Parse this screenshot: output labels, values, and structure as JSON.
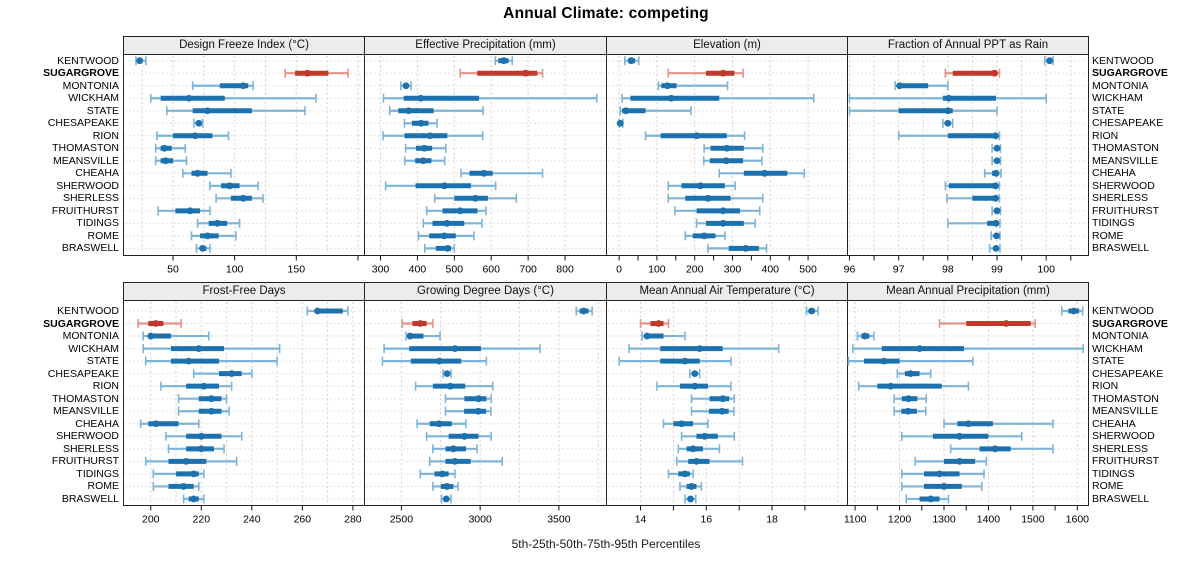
{
  "title": "Annual Climate: competing",
  "caption": "5th-25th-50th-75th-95th Percentiles",
  "percentiles": [
    "5th",
    "25th",
    "50th",
    "75th",
    "95th"
  ],
  "highlight_site": "SUGARGROVE",
  "sites": [
    "KENTWOOD",
    "SUGARGROVE",
    "MONTONIA",
    "WICKHAM",
    "STATE",
    "CHESAPEAKE",
    "RION",
    "THOMASTON",
    "MEANSVILLE",
    "CHEAHA",
    "SHERWOOD",
    "SHERLESS",
    "FRUITHURST",
    "TIDINGS",
    "ROME",
    "BRASWELL"
  ],
  "colors": {
    "blue_dark": "#1c71ae",
    "blue_light": "#7eb4d9",
    "red_dark": "#c0392b",
    "red_light": "#e2948a",
    "grid": "#cfcfcf",
    "row_guide": "#d8d8d8",
    "strip_bg": "#ececec",
    "border": "#222222"
  },
  "chart_data": [
    {
      "type": "dotplot-interval",
      "panel": "Design Freeze Index (°C)",
      "row": "top",
      "xlim": [
        10.3,
        204.9
      ],
      "grid": [
        25,
        50,
        75,
        100,
        125,
        150,
        175,
        200
      ],
      "ticks": [
        50,
        100,
        150,
        200
      ],
      "tick_labels": [
        "50",
        "100",
        "150",
        ""
      ],
      "values": [
        [
          20,
          22,
          23,
          25,
          28
        ],
        [
          141,
          149,
          159,
          176,
          192
        ],
        [
          66,
          88,
          107,
          111,
          115
        ],
        [
          32,
          40,
          63,
          92,
          166
        ],
        [
          45,
          66,
          78,
          114,
          157
        ],
        [
          67,
          69,
          71,
          72,
          74
        ],
        [
          37,
          50,
          68,
          82,
          95
        ],
        [
          36,
          40,
          43,
          49,
          60
        ],
        [
          36,
          40,
          44,
          50,
          61
        ],
        [
          58,
          65,
          70,
          78,
          97
        ],
        [
          80,
          89,
          96,
          104,
          119
        ],
        [
          85,
          97,
          107,
          114,
          123
        ],
        [
          38,
          52,
          64,
          72,
          80
        ],
        [
          70,
          79,
          86,
          94,
          104
        ],
        [
          65,
          72,
          78,
          87,
          101
        ],
        [
          69,
          72,
          74,
          77,
          80
        ]
      ]
    },
    {
      "type": "dotplot-interval",
      "panel": "Effective Precipitation (mm)",
      "row": "top",
      "xlim": [
        258,
        911
      ],
      "grid": [
        300,
        400,
        500,
        600,
        700,
        800
      ],
      "ticks": [
        300,
        400,
        500,
        600,
        700,
        800
      ],
      "tick_labels": [
        "300",
        "400",
        "500",
        "600",
        "700",
        "800"
      ],
      "values": [
        [
          611,
          619,
          634,
          647,
          657
        ],
        [
          516,
          562,
          693,
          725,
          739
        ],
        [
          355,
          362,
          369,
          376,
          383
        ],
        [
          308,
          363,
          409,
          567,
          886
        ],
        [
          325,
          348,
          376,
          444,
          578
        ],
        [
          365,
          385,
          410,
          430,
          453
        ],
        [
          307,
          365,
          434,
          481,
          577
        ],
        [
          368,
          396,
          419,
          440,
          477
        ],
        [
          366,
          394,
          416,
          438,
          474
        ],
        [
          518,
          541,
          580,
          604,
          739
        ],
        [
          314,
          395,
          473,
          545,
          612
        ],
        [
          447,
          500,
          557,
          591,
          668
        ],
        [
          425,
          468,
          516,
          563,
          586
        ],
        [
          416,
          441,
          480,
          527,
          575
        ],
        [
          403,
          432,
          473,
          504,
          553
        ],
        [
          420,
          450,
          482,
          491,
          500
        ]
      ]
    },
    {
      "type": "dotplot-interval",
      "panel": "Elevation (m)",
      "row": "top",
      "xlim": [
        -32,
        603
      ],
      "grid": [
        0,
        100,
        200,
        300,
        400,
        500
      ],
      "ticks": [
        0,
        50,
        100,
        150,
        200,
        250,
        300,
        350,
        400,
        450,
        500
      ],
      "tick_labels": [
        "0",
        "",
        "100",
        "",
        "200",
        "",
        "300",
        "",
        "400",
        "",
        "500"
      ],
      "values": [
        [
          15,
          24,
          32,
          42,
          52
        ],
        [
          130,
          230,
          275,
          305,
          328
        ],
        [
          104,
          112,
          128,
          152,
          287
        ],
        [
          8,
          30,
          138,
          265,
          515
        ],
        [
          3,
          8,
          18,
          70,
          190
        ],
        [
          0,
          1,
          3,
          6,
          10
        ],
        [
          70,
          110,
          205,
          285,
          332
        ],
        [
          225,
          242,
          285,
          330,
          380
        ],
        [
          224,
          240,
          283,
          328,
          378
        ],
        [
          265,
          330,
          385,
          445,
          490
        ],
        [
          130,
          165,
          215,
          280,
          307
        ],
        [
          130,
          175,
          235,
          295,
          380
        ],
        [
          148,
          205,
          275,
          320,
          372
        ],
        [
          205,
          230,
          275,
          330,
          360
        ],
        [
          175,
          195,
          225,
          255,
          280
        ],
        [
          235,
          290,
          335,
          370,
          390
        ]
      ]
    },
    {
      "type": "dotplot-interval",
      "panel": "Fraction of Annual PPT as Rain",
      "row": "top",
      "xlim": [
        95.97,
        100.85
      ],
      "grid": [
        96,
        96.5,
        97,
        97.5,
        98,
        98.5,
        99,
        99.5,
        100,
        100.5
      ],
      "ticks": [
        96,
        96.5,
        97,
        97.5,
        98,
        98.5,
        99,
        99.5,
        100,
        100.5
      ],
      "tick_labels": [
        "96",
        "",
        "97",
        "",
        "98",
        "",
        "99",
        "",
        "100",
        ""
      ],
      "values": [
        [
          99.97,
          100.02,
          100.07,
          100.1,
          100.14
        ],
        [
          97.95,
          98.1,
          98.95,
          99.0,
          99.05
        ],
        [
          96.93,
          96.97,
          97.02,
          97.6,
          98.0
        ],
        [
          96.0,
          97.9,
          98.02,
          98.98,
          100.0
        ],
        [
          96.0,
          97.0,
          98.0,
          98.1,
          99.0
        ],
        [
          97.9,
          97.96,
          98.0,
          98.04,
          98.1
        ],
        [
          97.0,
          98.0,
          98.97,
          99.0,
          99.05
        ],
        [
          98.9,
          98.96,
          99.0,
          99.03,
          99.07
        ],
        [
          98.9,
          98.96,
          99.0,
          99.03,
          99.07
        ],
        [
          98.75,
          98.9,
          98.98,
          99.03,
          99.08
        ],
        [
          97.95,
          98.02,
          98.97,
          99.0,
          99.05
        ],
        [
          97.98,
          98.5,
          98.97,
          99.0,
          99.05
        ],
        [
          98.9,
          98.95,
          99.0,
          99.03,
          99.07
        ],
        [
          98.0,
          98.8,
          98.98,
          99.02,
          99.06
        ],
        [
          98.88,
          98.94,
          98.99,
          99.02,
          99.06
        ],
        [
          98.85,
          98.93,
          98.98,
          99.02,
          99.06
        ]
      ]
    },
    {
      "type": "dotplot-interval",
      "panel": "Frost-Free Days",
      "row": "bottom",
      "xlim": [
        189.4,
        284.4
      ],
      "grid": [
        200,
        210,
        220,
        230,
        240,
        250,
        260,
        270,
        280
      ],
      "ticks": [
        200,
        220,
        240,
        260,
        280
      ],
      "tick_labels": [
        "200",
        "220",
        "240",
        "260",
        "280"
      ],
      "values": [
        [
          262,
          265,
          266,
          276,
          278
        ],
        [
          195,
          199,
          202,
          205,
          212
        ],
        [
          197,
          199,
          200,
          208,
          223
        ],
        [
          197,
          208,
          219,
          229,
          251
        ],
        [
          198,
          208,
          215,
          227,
          250
        ],
        [
          217,
          227,
          232,
          236,
          240
        ],
        [
          204,
          214,
          221,
          227,
          232
        ],
        [
          211,
          219,
          224,
          228,
          230
        ],
        [
          211,
          219,
          224,
          228,
          231
        ],
        [
          196,
          199,
          202,
          211,
          219
        ],
        [
          206,
          214,
          220,
          228,
          236
        ],
        [
          207,
          214,
          220,
          225,
          229
        ],
        [
          198,
          207,
          214,
          222,
          234
        ],
        [
          201,
          210,
          217,
          219,
          221
        ],
        [
          201,
          207,
          213,
          217,
          219
        ],
        [
          213,
          215,
          217,
          219,
          221
        ]
      ]
    },
    {
      "type": "dotplot-interval",
      "panel": "Growing Degree Days (°C)",
      "row": "bottom",
      "xlim": [
        2269,
        3799
      ],
      "grid": [
        2500,
        2750,
        3000,
        3250,
        3500,
        3750
      ],
      "ticks": [
        2500,
        3000,
        3500
      ],
      "tick_labels": [
        "2500",
        "3000",
        "3500"
      ],
      "values": [
        [
          3610,
          3632,
          3657,
          3688,
          3711
        ],
        [
          2505,
          2570,
          2620,
          2660,
          2700
        ],
        [
          2530,
          2542,
          2555,
          2640,
          2745
        ],
        [
          2390,
          2550,
          2840,
          3005,
          3380
        ],
        [
          2380,
          2560,
          2740,
          2880,
          3040
        ],
        [
          2765,
          2780,
          2790,
          2800,
          2815
        ],
        [
          2590,
          2700,
          2810,
          2905,
          3080
        ],
        [
          2780,
          2900,
          2990,
          3040,
          3070
        ],
        [
          2780,
          2898,
          2988,
          3038,
          3068
        ],
        [
          2600,
          2680,
          2740,
          2820,
          2910
        ],
        [
          2660,
          2800,
          2900,
          2990,
          3070
        ],
        [
          2700,
          2780,
          2830,
          2910,
          2980
        ],
        [
          2680,
          2780,
          2840,
          2940,
          3140
        ],
        [
          2620,
          2710,
          2760,
          2800,
          2840
        ],
        [
          2700,
          2750,
          2790,
          2830,
          2860
        ],
        [
          2755,
          2770,
          2785,
          2800,
          2815
        ]
      ]
    },
    {
      "type": "dotplot-interval",
      "panel": "Mean Annual Air Temperature (°C)",
      "row": "bottom",
      "xlim": [
        12.98,
        20.28
      ],
      "grid": [
        14,
        15,
        16,
        17,
        18,
        19,
        20
      ],
      "ticks": [
        14,
        15,
        16,
        17,
        18,
        19
      ],
      "tick_labels": [
        "14",
        "",
        "16",
        "",
        "18",
        ""
      ],
      "values": [
        [
          19.05,
          19.12,
          19.2,
          19.3,
          19.4
        ],
        [
          14.0,
          14.3,
          14.55,
          14.7,
          14.85
        ],
        [
          14.05,
          14.12,
          14.2,
          14.7,
          15.35
        ],
        [
          13.65,
          14.6,
          15.8,
          16.5,
          18.2
        ],
        [
          13.35,
          14.6,
          15.35,
          15.8,
          16.75
        ],
        [
          15.5,
          15.6,
          15.65,
          15.72,
          15.8
        ],
        [
          14.5,
          15.2,
          15.65,
          16.05,
          16.75
        ],
        [
          15.55,
          16.1,
          16.5,
          16.7,
          16.85
        ],
        [
          15.55,
          16.08,
          16.48,
          16.68,
          16.84
        ],
        [
          14.7,
          15.0,
          15.25,
          15.6,
          16.05
        ],
        [
          15.25,
          15.7,
          15.95,
          16.35,
          16.85
        ],
        [
          15.15,
          15.4,
          15.6,
          15.9,
          16.4
        ],
        [
          15.1,
          15.45,
          15.7,
          16.1,
          17.1
        ],
        [
          14.85,
          15.15,
          15.35,
          15.5,
          15.6
        ],
        [
          15.2,
          15.4,
          15.55,
          15.7,
          15.85
        ],
        [
          15.35,
          15.45,
          15.52,
          15.6,
          15.68
        ]
      ]
    },
    {
      "type": "dotplot-interval",
      "panel": "Mean Annual Precipitation (mm)",
      "row": "bottom",
      "xlim": [
        1084,
        1624
      ],
      "grid": [
        1100,
        1200,
        1300,
        1400,
        1500,
        1600
      ],
      "ticks": [
        1100,
        1150,
        1200,
        1250,
        1300,
        1350,
        1400,
        1450,
        1500,
        1550,
        1600
      ],
      "tick_labels": [
        "1100",
        "",
        "1200",
        "",
        "1300",
        "",
        "1400",
        "",
        "1500",
        "",
        "1600"
      ],
      "values": [
        [
          1565,
          1580,
          1592,
          1604,
          1612
        ],
        [
          1290,
          1350,
          1440,
          1495,
          1505
        ],
        [
          1105,
          1114,
          1122,
          1132,
          1142
        ],
        [
          1095,
          1160,
          1245,
          1345,
          1613
        ],
        [
          1085,
          1120,
          1165,
          1200,
          1365
        ],
        [
          1195,
          1212,
          1225,
          1245,
          1270
        ],
        [
          1108,
          1150,
          1180,
          1295,
          1355
        ],
        [
          1188,
          1205,
          1220,
          1240,
          1260
        ],
        [
          1188,
          1204,
          1219,
          1239,
          1259
        ],
        [
          1300,
          1330,
          1355,
          1410,
          1545
        ],
        [
          1205,
          1275,
          1335,
          1400,
          1475
        ],
        [
          1315,
          1380,
          1415,
          1450,
          1545
        ],
        [
          1235,
          1300,
          1335,
          1370,
          1395
        ],
        [
          1205,
          1255,
          1290,
          1335,
          1390
        ],
        [
          1205,
          1255,
          1300,
          1340,
          1385
        ],
        [
          1215,
          1245,
          1270,
          1290,
          1310
        ]
      ]
    }
  ]
}
